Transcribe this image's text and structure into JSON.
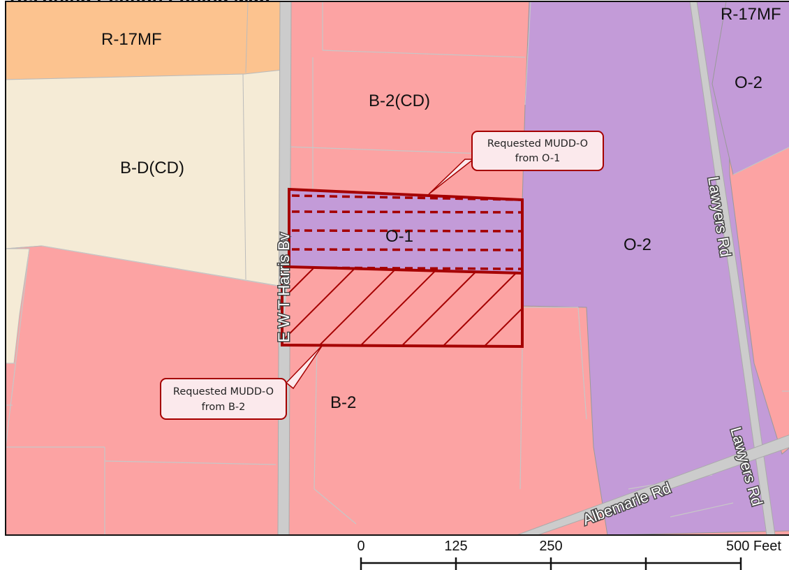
{
  "map_title": "Rezoning Petition Zoning Map",
  "zones": {
    "r17mf_left": "R-17MF",
    "r17mf_right": "R-17MF",
    "bdcd": "B-D(CD)",
    "b2cd": "B-2(CD)",
    "o1": "O-1",
    "o2_center": "O-2",
    "o2_top": "O-2",
    "b2": "B-2"
  },
  "roads": {
    "harris": "E W T Harris Bv",
    "lawyers_north": "Lawyers Rd",
    "lawyers_south": "Lawyers Rd",
    "albemarle": "Albemarle Rd"
  },
  "callouts": {
    "top": {
      "line1": "Requested MUDD-O",
      "line2": "from O-1"
    },
    "bottom": {
      "line1": "Requested MUDD-O",
      "line2": "from B-2"
    }
  },
  "scale_bar": {
    "ticks": [
      "0",
      "125",
      "250",
      "500 Feet"
    ]
  },
  "colors": {
    "b2_pink": "#fca3a3",
    "office_purple": "#c39bd8",
    "multifamily_orange": "#fcc38f",
    "bd_tan": "#f5ebd6",
    "road_gray": "#cccccc",
    "petition_outline": "#a50000"
  }
}
